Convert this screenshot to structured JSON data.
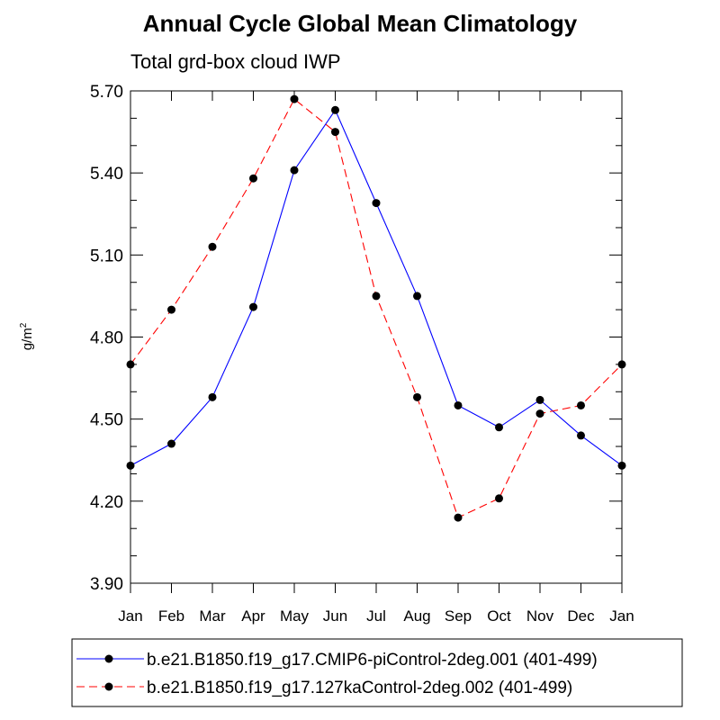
{
  "chart_data": {
    "type": "line",
    "title": "Annual Cycle Global Mean Climatology",
    "subtitle": "Total grd-box cloud IWP",
    "ylabel_base": "g/m",
    "ylabel_sup": "2",
    "categories": [
      "Jan",
      "Feb",
      "Mar",
      "Apr",
      "May",
      "Jun",
      "Jul",
      "Aug",
      "Sep",
      "Oct",
      "Nov",
      "Dec",
      "Jan"
    ],
    "ylim": [
      3.9,
      5.7
    ],
    "yticks": [
      3.9,
      4.2,
      4.5,
      4.8,
      5.1,
      5.4,
      5.7
    ],
    "ytick_labels": [
      "3.90",
      "4.20",
      "4.50",
      "4.80",
      "5.10",
      "5.40",
      "5.70"
    ],
    "series": [
      {
        "name": "b.e21.B1850.f19_g17.CMIP6-piControl-2deg.001 (401-499)",
        "color": "#0000ff",
        "dash": "solid",
        "values": [
          4.33,
          4.41,
          4.58,
          4.91,
          5.41,
          5.63,
          5.29,
          4.95,
          4.55,
          4.47,
          4.57,
          4.44,
          4.33
        ]
      },
      {
        "name": "b.e21.B1850.f19_g17.127kaControl-2deg.002 (401-499)",
        "color": "#ff0000",
        "dash": "dashed",
        "values": [
          4.7,
          4.9,
          5.13,
          5.38,
          5.67,
          5.55,
          4.95,
          4.58,
          4.14,
          4.21,
          4.52,
          4.55,
          4.7
        ]
      }
    ]
  }
}
